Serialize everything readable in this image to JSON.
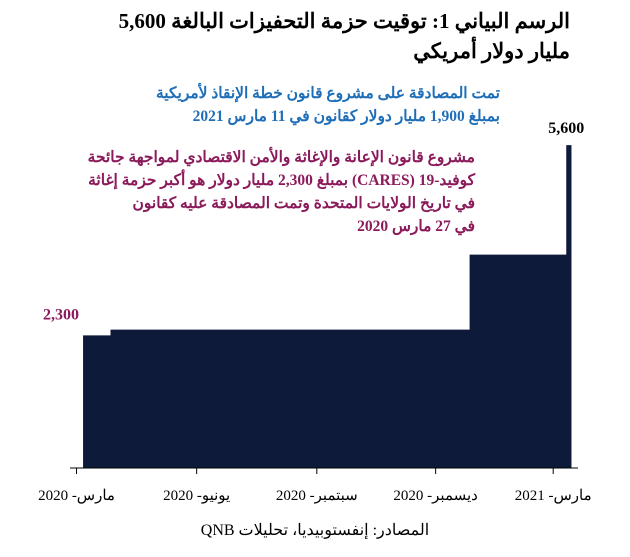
{
  "title": {
    "line1": "الرسم البياني 1: توقيت حزمة التحفيزات البالغة 5,600",
    "line2": "مليار دولار أمريكي"
  },
  "annotations": {
    "blue": {
      "lines": [
        "تمت المصادقة على مشروع قانون خطة الإنقاذ لأمريكية",
        "بمبلغ 1,900 مليار دولار كقانون في 11 مارس 2021"
      ],
      "color": "#1f6fb8"
    },
    "purple": {
      "lines": [
        "مشروع قانون الإعانة والإغاثة والأمن الاقتصادي لمواجهة جائحة",
        "كوفيد-19 (CARES) بمبلغ 2,300 مليار دولار هو أكبر حزمة إغاثة",
        "في تاريخ الولايات المتحدة وتمت المصادقة عليه كقانون",
        "في 27 مارس 2020"
      ],
      "color": "#8b1a5b"
    }
  },
  "source": "المصادر: إنفستوبيديا، تحليلات QNB",
  "chart_data": {
    "type": "area",
    "step": true,
    "fill_color": "#0d1a3a",
    "x_ticks": [
      {
        "date": "2020-03-01",
        "label": "مارس- 2020"
      },
      {
        "date": "2020-06-01",
        "label": "يونيو- 2020"
      },
      {
        "date": "2020-09-01",
        "label": "سبتمبر- 2020"
      },
      {
        "date": "2020-12-01",
        "label": "ديسمبر- 2020"
      },
      {
        "date": "2021-03-01",
        "label": "مارس- 2021"
      }
    ],
    "x_range": [
      "2020-02-25",
      "2021-03-20"
    ],
    "ylim": [
      0,
      6000
    ],
    "series": [
      {
        "points": [
          {
            "date": "2020-03-06",
            "value": 2300
          },
          {
            "date": "2020-03-27",
            "value": 2400
          },
          {
            "date": "2020-12-27",
            "value": 3700
          },
          {
            "date": "2021-03-11",
            "value": 5600
          },
          {
            "date": "2021-03-15",
            "value": 5600
          }
        ]
      }
    ],
    "data_labels": [
      {
        "date": "2020-03-06",
        "value": 2300,
        "text": "2,300",
        "color": "#8b1a5b"
      },
      {
        "date": "2021-03-11",
        "value": 5600,
        "text": "5,600",
        "color": "#000000"
      }
    ]
  }
}
